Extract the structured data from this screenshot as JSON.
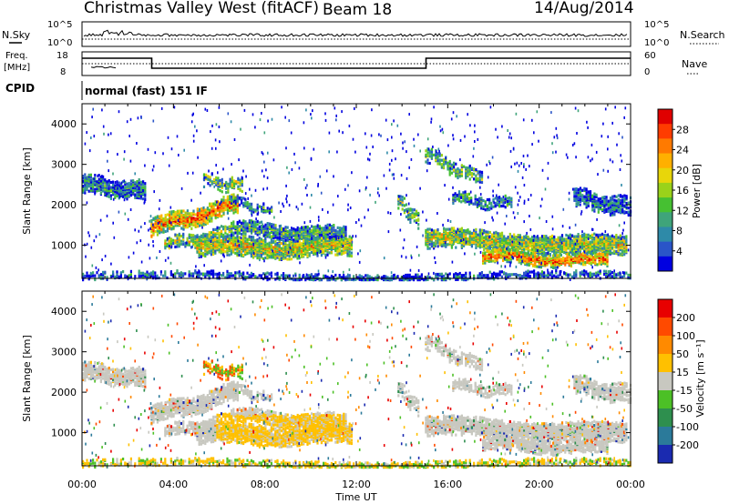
{
  "header": {
    "station": "Christmas Valley West (fitACF)",
    "beam": "Beam 18",
    "date": "14/Aug/2014"
  },
  "top_panels": {
    "nsky_label": "N.Sky",
    "nsky_ticks": [
      "10^5",
      "10^0"
    ],
    "nsearch_label": "N.Search",
    "nsearch_ticks": [
      "10^5",
      "10^0"
    ],
    "freq_label_1": "Freq.",
    "freq_label_2": "[MHz]",
    "freq_ticks": [
      "18",
      "8"
    ],
    "nave_label": "Nave",
    "nave_ticks": [
      "60",
      "0"
    ],
    "cpid_label": "CPID",
    "cpid_text": "normal (fast) 151 IF"
  },
  "chart_data": [
    {
      "type": "heatmap",
      "parameter": "Power",
      "ylabel": "Slant Range [km]",
      "ylim": [
        180,
        4500
      ],
      "y_ticks": [
        1000,
        2000,
        3000,
        4000
      ],
      "colorbar_label": "Power [dB]",
      "colorbar_ticks": [
        "28",
        "24",
        "20",
        "16",
        "12",
        "8",
        "4"
      ],
      "colorbar_colors": [
        "#0000e0",
        "#2a55c8",
        "#2e8aa8",
        "#3fa47a",
        "#46c032",
        "#9ad21a",
        "#e8d60a",
        "#ffb000",
        "#ff7a00",
        "#ff3c00",
        "#e00000"
      ]
    },
    {
      "type": "heatmap",
      "parameter": "Velocity",
      "ylabel": "Slant Range [km]",
      "ylim": [
        180,
        4500
      ],
      "y_ticks": [
        1000,
        2000,
        3000,
        4000
      ],
      "xlabel": "Time UT",
      "x_ticks": [
        "00:00",
        "04:00",
        "08:00",
        "12:00",
        "16:00",
        "20:00",
        "00:00"
      ],
      "colorbar_label": "Velocity [m s⁻¹]",
      "colorbar_ticks": [
        "200",
        "100",
        "50",
        "15",
        "-15",
        "-50",
        "-100",
        "-200"
      ],
      "colorbar_colors": [
        "#1a2ab0",
        "#2b7a9a",
        "#2e8f4e",
        "#4cc026",
        "#c8c8c0",
        "#ffc000",
        "#ff8a00",
        "#ff4a00",
        "#e80000"
      ]
    }
  ]
}
